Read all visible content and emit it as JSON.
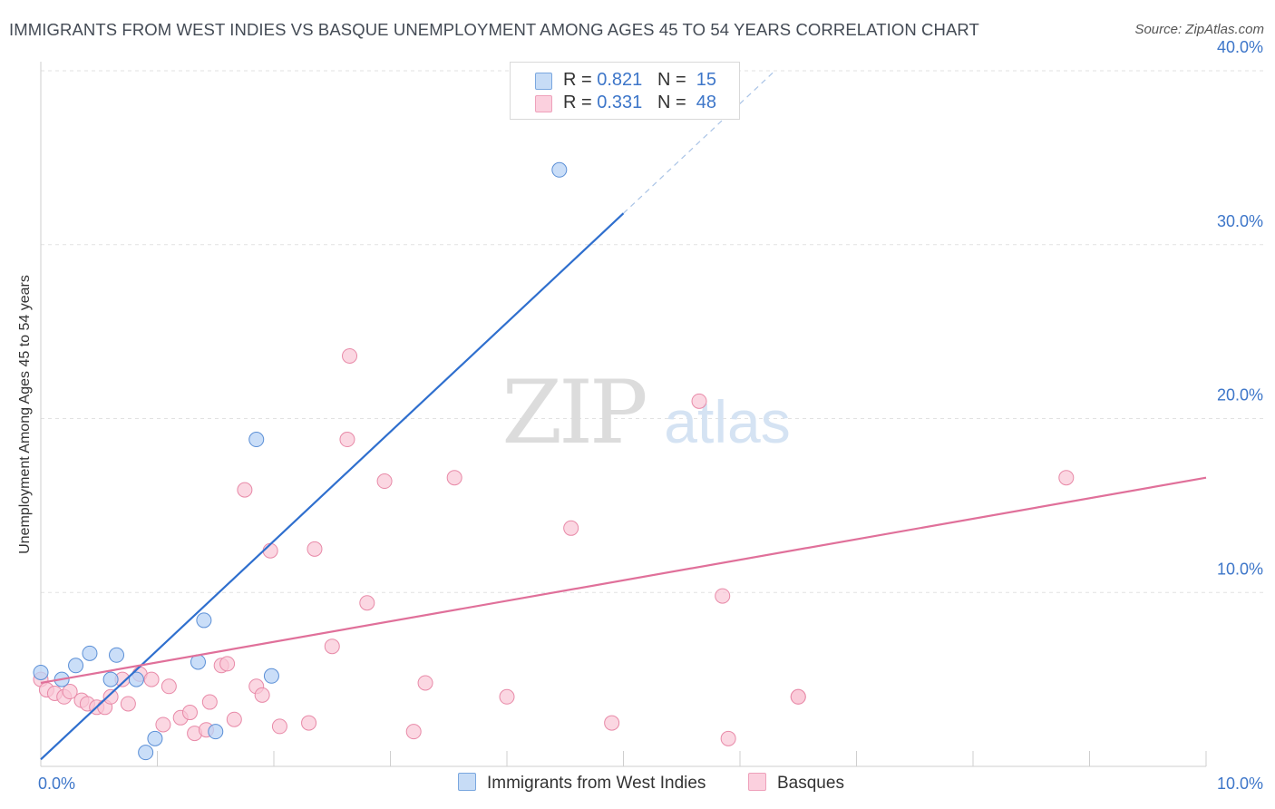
{
  "title": "IMMIGRANTS FROM WEST INDIES VS BASQUE UNEMPLOYMENT AMONG AGES 45 TO 54 YEARS CORRELATION CHART",
  "source": "Source: ZipAtlas.com",
  "watermark": {
    "zip": "ZIP",
    "atlas": "atlas"
  },
  "legend": {
    "series1": {
      "r_label": "R = ",
      "r_value": "0.821",
      "n_label": "N = ",
      "n_value": "15"
    },
    "series2": {
      "r_label": "R = ",
      "r_value": "0.331",
      "n_label": "N = ",
      "n_value": "48"
    }
  },
  "colors": {
    "blue_fill": "#b8d3f5",
    "blue_stroke": "#5b8fd6",
    "blue_line": "#2f6fce",
    "pink_fill": "#f9c6d6",
    "pink_stroke": "#e88aa8",
    "pink_line": "#e0709a",
    "tick_text": "#3d76c9",
    "grid": "#e2e2e2"
  },
  "chart_data": {
    "type": "scatter",
    "title": "IMMIGRANTS FROM WEST INDIES VS BASQUE UNEMPLOYMENT AMONG AGES 45 TO 54 YEARS CORRELATION CHART",
    "xlabel": "",
    "ylabel": "Unemployment Among Ages 45 to 54 years",
    "xlim": [
      0,
      10
    ],
    "ylim": [
      0,
      40
    ],
    "x_tick_labels": [
      "0.0%",
      "10.0%"
    ],
    "y_ticks": [
      10,
      20,
      30,
      40
    ],
    "y_tick_labels": [
      "10.0%",
      "20.0%",
      "30.0%",
      "40.0%"
    ],
    "grid": true,
    "legend_position": "top-center",
    "series": [
      {
        "name": "Immigrants from West Indies",
        "color": "blue",
        "points": [
          [
            0.0,
            5.4
          ],
          [
            0.18,
            5.0
          ],
          [
            0.3,
            5.8
          ],
          [
            0.42,
            6.5
          ],
          [
            0.6,
            5.0
          ],
          [
            0.65,
            6.4
          ],
          [
            0.82,
            5.0
          ],
          [
            0.9,
            0.8
          ],
          [
            0.98,
            1.6
          ],
          [
            1.35,
            6.0
          ],
          [
            1.4,
            8.4
          ],
          [
            1.5,
            2.0
          ],
          [
            1.85,
            18.8
          ],
          [
            1.98,
            5.2
          ],
          [
            4.45,
            34.3
          ]
        ],
        "trendline": {
          "x": [
            0.0,
            5.0
          ],
          "y": [
            0.4,
            31.8
          ],
          "dashed_x": [
            5.0,
            6.3
          ],
          "dashed_y": [
            31.8,
            40.0
          ]
        }
      },
      {
        "name": "Basques",
        "color": "pink",
        "points": [
          [
            0.0,
            5.0
          ],
          [
            0.05,
            4.4
          ],
          [
            0.12,
            4.2
          ],
          [
            0.2,
            4.0
          ],
          [
            0.25,
            4.3
          ],
          [
            0.35,
            3.8
          ],
          [
            0.4,
            3.6
          ],
          [
            0.48,
            3.4
          ],
          [
            0.55,
            3.4
          ],
          [
            0.6,
            4.0
          ],
          [
            0.7,
            5.0
          ],
          [
            0.75,
            3.6
          ],
          [
            0.85,
            5.3
          ],
          [
            0.95,
            5.0
          ],
          [
            1.05,
            2.4
          ],
          [
            1.1,
            4.6
          ],
          [
            1.2,
            2.8
          ],
          [
            1.28,
            3.1
          ],
          [
            1.32,
            1.9
          ],
          [
            1.42,
            2.1
          ],
          [
            1.45,
            3.7
          ],
          [
            1.55,
            5.8
          ],
          [
            1.6,
            5.9
          ],
          [
            1.66,
            2.7
          ],
          [
            1.75,
            15.9
          ],
          [
            1.85,
            4.6
          ],
          [
            1.9,
            4.1
          ],
          [
            1.97,
            12.4
          ],
          [
            2.05,
            2.3
          ],
          [
            2.3,
            2.5
          ],
          [
            2.35,
            12.5
          ],
          [
            2.5,
            6.9
          ],
          [
            2.63,
            18.8
          ],
          [
            2.65,
            23.6
          ],
          [
            2.8,
            9.4
          ],
          [
            2.95,
            16.4
          ],
          [
            3.2,
            2.0
          ],
          [
            3.3,
            4.8
          ],
          [
            3.55,
            16.6
          ],
          [
            4.0,
            4.0
          ],
          [
            4.55,
            13.7
          ],
          [
            4.9,
            2.5
          ],
          [
            5.65,
            21.0
          ],
          [
            5.85,
            9.8
          ],
          [
            5.9,
            1.6
          ],
          [
            6.5,
            4.0
          ],
          [
            8.8,
            16.6
          ],
          [
            6.5,
            4.0
          ]
        ],
        "trendline": {
          "x": [
            0.0,
            10.0
          ],
          "y": [
            4.8,
            16.6
          ]
        }
      }
    ]
  }
}
